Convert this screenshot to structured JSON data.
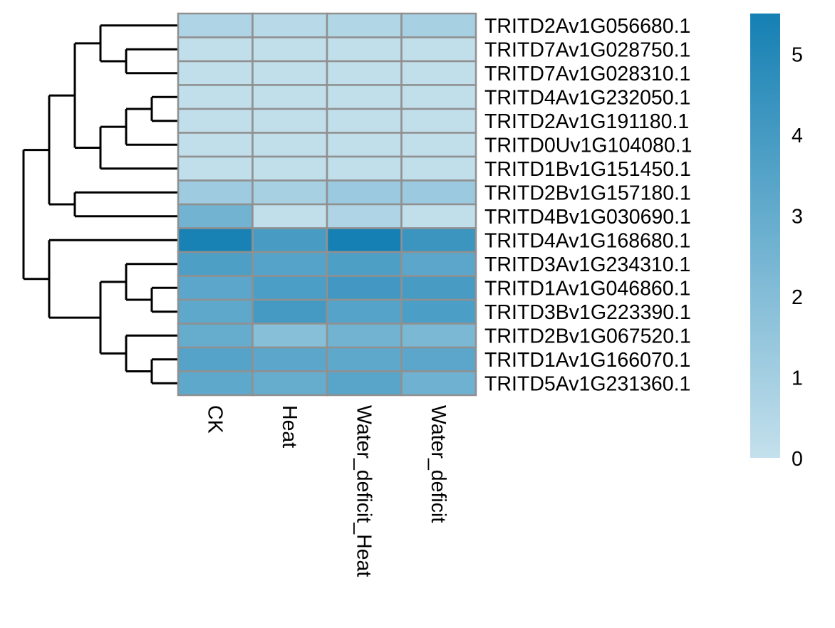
{
  "chart_data": {
    "type": "heatmap",
    "title": "",
    "xlabel": "",
    "ylabel": "",
    "columns": [
      "CK",
      "Heat",
      "Water_deficit_Heat",
      "Water_deficit"
    ],
    "rows": [
      "TRITD2Av1G056680.1",
      "TRITD7Av1G028750.1",
      "TRITD7Av1G028310.1",
      "TRITD4Av1G232050.1",
      "TRITD2Av1G191180.1",
      "TRITD0Uv1G104080.1",
      "TRITD1Bv1G151450.1",
      "TRITD2Bv1G157180.1",
      "TRITD4Bv1G030690.1",
      "TRITD4Av1G168680.1",
      "TRITD3Av1G234310.1",
      "TRITD1Av1G046860.1",
      "TRITD3Bv1G223390.1",
      "TRITD2Bv1G067520.1",
      "TRITD1Av1G166070.1",
      "TRITD5Av1G231360.1"
    ],
    "values": [
      [
        0.7,
        0.4,
        0.6,
        0.9
      ],
      [
        0.1,
        0.1,
        0.1,
        0.1
      ],
      [
        0.1,
        0.1,
        0.1,
        0.1
      ],
      [
        0.1,
        0.1,
        0.1,
        0.1
      ],
      [
        0.1,
        0.1,
        0.1,
        0.1
      ],
      [
        0.1,
        0.1,
        0.1,
        0.1
      ],
      [
        0.1,
        0.1,
        0.1,
        0.1
      ],
      [
        1.2,
        0.9,
        1.3,
        1.3
      ],
      [
        2.6,
        0.1,
        0.7,
        0.1
      ],
      [
        5.4,
        3.9,
        5.5,
        4.3
      ],
      [
        3.7,
        3.5,
        3.7,
        3.3
      ],
      [
        3.3,
        3.8,
        4.1,
        3.9
      ],
      [
        3.2,
        4.0,
        3.5,
        3.8
      ],
      [
        3.0,
        1.9,
        2.6,
        2.3
      ],
      [
        3.5,
        3.3,
        3.2,
        3.3
      ],
      [
        3.2,
        3.0,
        3.4,
        2.7
      ]
    ],
    "color_scale": {
      "min": 0,
      "max": 5.5,
      "low_color": "#c4e0ec",
      "high_color": "#1580b3",
      "ticks": [
        0,
        1,
        2,
        3,
        4,
        5
      ]
    },
    "cell_border_color": "#909090",
    "dendrogram": {
      "side": "left",
      "note_free": true,
      "tree": [
        [
          [
            [
              [
                0,
                [
                  1,
                  2
                ]
              ],
              [
                [
                  [
                    3,
                    4
                  ],
                  5
                ],
                6
              ]
            ],
            [
              7,
              8
            ]
          ],
          [
            9,
            [
              [
                [
                  10,
                  [
                    11,
                    12
                  ]
                ],
                [
                  13,
                  [
                    14,
                    15
                  ]
                ]
              ]
            ]
          ]
        ]
      ]
    }
  }
}
